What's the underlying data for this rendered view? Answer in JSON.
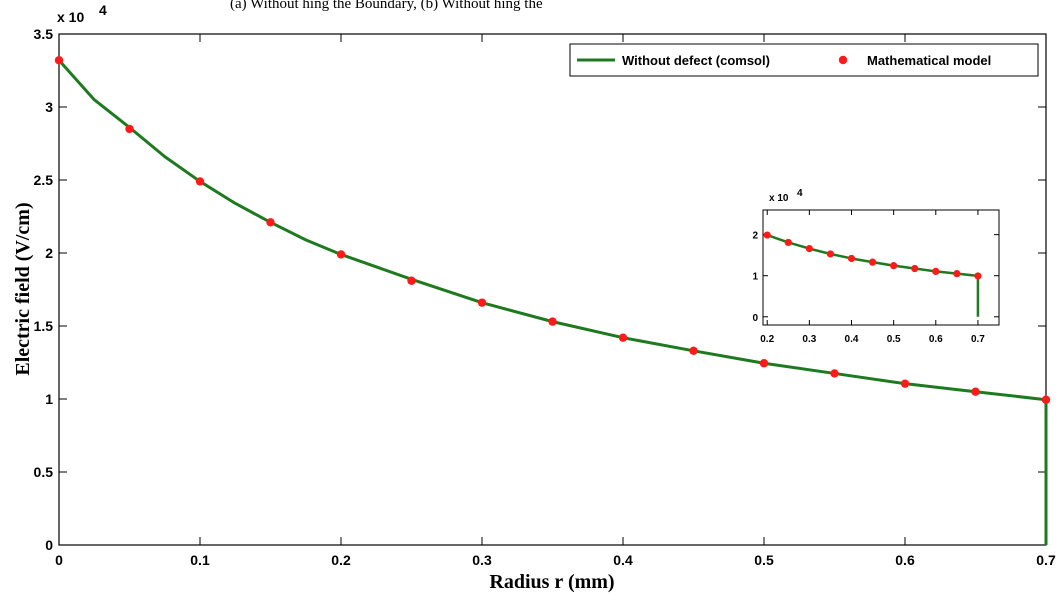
{
  "caption_top": "(a) Without hing the Boundary, (b) Without hing the",
  "chart_data": [
    {
      "type": "line",
      "xlabel": "Radius r (mm)",
      "ylabel": "Electric field (V/cm)",
      "y_multiplier": "x 10",
      "y_multiplier_exp": "4",
      "xlim": [
        0,
        0.7
      ],
      "ylim": [
        0,
        3.5
      ],
      "xticks": [
        0,
        0.1,
        0.2,
        0.3,
        0.4,
        0.5,
        0.6,
        0.7
      ],
      "xtick_labels": [
        "0",
        "0.1",
        "0.2",
        "0.3",
        "0.4",
        "0.5",
        "0.6",
        "0.7"
      ],
      "yticks": [
        0,
        0.5,
        1,
        1.5,
        2,
        2.5,
        3,
        3.5
      ],
      "ytick_labels": [
        "0",
        "0.5",
        "1",
        "1.5",
        "2",
        "2.5",
        "3",
        "3.5"
      ],
      "legend_position": "top-right",
      "series": [
        {
          "name": "Without defect (comsol)",
          "style": "line",
          "color": "#1e7a1e",
          "x": [
            0,
            0.025,
            0.05,
            0.075,
            0.1,
            0.125,
            0.15,
            0.175,
            0.2,
            0.25,
            0.3,
            0.35,
            0.4,
            0.45,
            0.5,
            0.55,
            0.6,
            0.65,
            0.7,
            0.7
          ],
          "y": [
            3.32,
            3.05,
            2.86,
            2.66,
            2.49,
            2.34,
            2.21,
            2.09,
            1.99,
            1.82,
            1.66,
            1.53,
            1.42,
            1.33,
            1.245,
            1.175,
            1.105,
            1.05,
            0.995,
            0
          ]
        },
        {
          "name": "Mathematical model",
          "style": "markers",
          "color": "#ff1a1a",
          "x": [
            0,
            0.05,
            0.1,
            0.15,
            0.2,
            0.25,
            0.3,
            0.35,
            0.4,
            0.45,
            0.5,
            0.55,
            0.6,
            0.65,
            0.7
          ],
          "y": [
            3.32,
            2.85,
            2.49,
            2.21,
            1.99,
            1.81,
            1.66,
            1.53,
            1.42,
            1.33,
            1.245,
            1.175,
            1.105,
            1.05,
            0.995
          ]
        }
      ]
    },
    {
      "type": "line",
      "role": "inset",
      "y_multiplier": "x 10",
      "y_multiplier_exp": "4",
      "xlim": [
        0.19,
        0.75
      ],
      "ylim": [
        -0.2,
        2.6
      ],
      "xticks": [
        0.2,
        0.3,
        0.4,
        0.5,
        0.6,
        0.7
      ],
      "xtick_labels": [
        "0.2",
        "0.3",
        "0.4",
        "0.5",
        "0.6",
        "0.7"
      ],
      "yticks": [
        0,
        1,
        2
      ],
      "ytick_labels": [
        "0",
        "1",
        "2"
      ],
      "series": [
        {
          "style": "line",
          "color": "#1e7a1e",
          "x": [
            0.2,
            0.25,
            0.3,
            0.35,
            0.4,
            0.45,
            0.5,
            0.55,
            0.6,
            0.65,
            0.7,
            0.7
          ],
          "y": [
            1.99,
            1.81,
            1.66,
            1.53,
            1.42,
            1.33,
            1.245,
            1.175,
            1.105,
            1.05,
            0.995,
            0
          ]
        },
        {
          "style": "markers",
          "color": "#ff1a1a",
          "x": [
            0.2,
            0.25,
            0.3,
            0.35,
            0.4,
            0.45,
            0.5,
            0.55,
            0.6,
            0.65,
            0.7
          ],
          "y": [
            1.99,
            1.81,
            1.66,
            1.53,
            1.42,
            1.33,
            1.245,
            1.175,
            1.105,
            1.05,
            0.995
          ]
        }
      ]
    }
  ]
}
